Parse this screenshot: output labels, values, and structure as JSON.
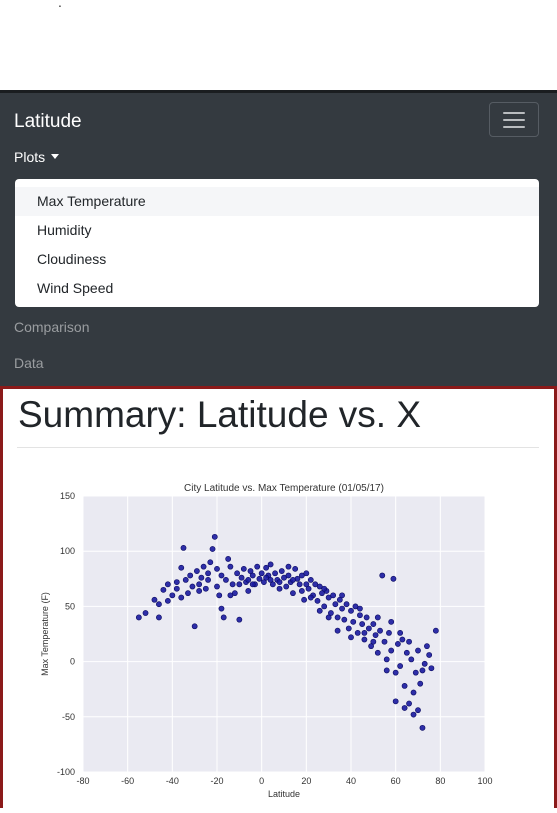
{
  "navbar": {
    "brand": "Latitude",
    "plots_label": "Plots",
    "dropdown_items": [
      "Max Temperature",
      "Humidity",
      "Cloudiness",
      "Wind Speed"
    ],
    "links": [
      "Comparison",
      "Data"
    ]
  },
  "main": {
    "heading": "Summary: Latitude vs. X"
  },
  "colors": {
    "navbar_bg": "#343a40",
    "frame_border": "#8b1a1a",
    "point_fill": "#1a1aa0",
    "plot_bg": "#eaeaf2"
  },
  "chart_data": {
    "type": "scatter",
    "title": "City Latitude vs. Max Temperature (01/05/17)",
    "xlabel": "Latitude",
    "ylabel": "Max Temperature (F)",
    "xlim": [
      -80,
      100
    ],
    "ylim": [
      -100,
      150
    ],
    "xticks": [
      -80,
      -60,
      -40,
      -20,
      0,
      20,
      40,
      60,
      80,
      100
    ],
    "yticks": [
      -100,
      -50,
      0,
      50,
      100,
      150
    ],
    "grid": true,
    "series": [
      {
        "points": [
          [
            -55,
            40
          ],
          [
            -52,
            44
          ],
          [
            -48,
            56
          ],
          [
            -46,
            52
          ],
          [
            -46,
            40
          ],
          [
            -44,
            65
          ],
          [
            -42,
            70
          ],
          [
            -40,
            60
          ],
          [
            -38,
            72
          ],
          [
            -38,
            66
          ],
          [
            -36,
            85
          ],
          [
            -35,
            103
          ],
          [
            -34,
            74
          ],
          [
            -33,
            62
          ],
          [
            -32,
            78
          ],
          [
            -31,
            68
          ],
          [
            -30,
            32
          ],
          [
            -29,
            82
          ],
          [
            -28,
            70
          ],
          [
            -27,
            76
          ],
          [
            -26,
            86
          ],
          [
            -25,
            66
          ],
          [
            -24,
            80
          ],
          [
            -23,
            90
          ],
          [
            -22,
            102
          ],
          [
            -21,
            113
          ],
          [
            -20,
            84
          ],
          [
            -19,
            60
          ],
          [
            -18,
            48
          ],
          [
            -18,
            78
          ],
          [
            -17,
            40
          ],
          [
            -16,
            74
          ],
          [
            -15,
            93
          ],
          [
            -14,
            86
          ],
          [
            -13,
            70
          ],
          [
            -12,
            62
          ],
          [
            -11,
            80
          ],
          [
            -10,
            38
          ],
          [
            -9,
            76
          ],
          [
            -8,
            84
          ],
          [
            -7,
            72
          ],
          [
            -6,
            64
          ],
          [
            -5,
            82
          ],
          [
            -4,
            78
          ],
          [
            -3,
            70
          ],
          [
            -2,
            86
          ],
          [
            -1,
            75
          ],
          [
            0,
            80
          ],
          [
            1,
            72
          ],
          [
            2,
            85
          ],
          [
            3,
            78
          ],
          [
            4,
            88
          ],
          [
            5,
            70
          ],
          [
            6,
            80
          ],
          [
            7,
            74
          ],
          [
            8,
            66
          ],
          [
            9,
            82
          ],
          [
            10,
            76
          ],
          [
            11,
            68
          ],
          [
            12,
            86
          ],
          [
            13,
            72
          ],
          [
            14,
            62
          ],
          [
            15,
            84
          ],
          [
            16,
            75
          ],
          [
            17,
            70
          ],
          [
            18,
            78
          ],
          [
            19,
            56
          ],
          [
            20,
            80
          ],
          [
            21,
            66
          ],
          [
            22,
            74
          ],
          [
            23,
            60
          ],
          [
            24,
            70
          ],
          [
            25,
            55
          ],
          [
            26,
            68
          ],
          [
            27,
            62
          ],
          [
            28,
            50
          ],
          [
            29,
            64
          ],
          [
            30,
            58
          ],
          [
            31,
            44
          ],
          [
            32,
            60
          ],
          [
            33,
            52
          ],
          [
            34,
            40
          ],
          [
            35,
            56
          ],
          [
            36,
            48
          ],
          [
            37,
            38
          ],
          [
            38,
            52
          ],
          [
            39,
            30
          ],
          [
            40,
            46
          ],
          [
            41,
            36
          ],
          [
            42,
            50
          ],
          [
            43,
            26
          ],
          [
            44,
            42
          ],
          [
            45,
            34
          ],
          [
            46,
            20
          ],
          [
            47,
            40
          ],
          [
            48,
            30
          ],
          [
            49,
            14
          ],
          [
            50,
            34
          ],
          [
            51,
            24
          ],
          [
            52,
            8
          ],
          [
            53,
            28
          ],
          [
            54,
            78
          ],
          [
            55,
            18
          ],
          [
            56,
            2
          ],
          [
            57,
            26
          ],
          [
            58,
            10
          ],
          [
            59,
            75
          ],
          [
            60,
            -10
          ],
          [
            61,
            16
          ],
          [
            62,
            -4
          ],
          [
            63,
            20
          ],
          [
            64,
            -22
          ],
          [
            65,
            8
          ],
          [
            66,
            -38
          ],
          [
            67,
            2
          ],
          [
            68,
            -28
          ],
          [
            69,
            -10
          ],
          [
            70,
            -44
          ],
          [
            71,
            -20
          ],
          [
            72,
            -60
          ],
          [
            73,
            -2
          ],
          [
            74,
            14
          ],
          [
            75,
            6
          ],
          [
            76,
            -6
          ],
          [
            78,
            28
          ],
          [
            -42,
            55
          ],
          [
            -36,
            58
          ],
          [
            -28,
            64
          ],
          [
            -24,
            74
          ],
          [
            -20,
            68
          ],
          [
            -14,
            60
          ],
          [
            -6,
            74
          ],
          [
            4,
            74
          ],
          [
            12,
            78
          ],
          [
            20,
            70
          ],
          [
            28,
            66
          ],
          [
            36,
            60
          ],
          [
            44,
            48
          ],
          [
            52,
            40
          ],
          [
            58,
            36
          ],
          [
            62,
            26
          ],
          [
            66,
            18
          ],
          [
            70,
            10
          ],
          [
            72,
            -8
          ],
          [
            68,
            -48
          ],
          [
            64,
            -42
          ],
          [
            60,
            -36
          ],
          [
            56,
            -8
          ],
          [
            50,
            18
          ],
          [
            46,
            26
          ],
          [
            40,
            22
          ],
          [
            34,
            28
          ],
          [
            30,
            40
          ],
          [
            26,
            46
          ],
          [
            22,
            58
          ],
          [
            18,
            64
          ],
          [
            14,
            74
          ],
          [
            8,
            72
          ],
          [
            2,
            76
          ],
          [
            -4,
            70
          ],
          [
            -10,
            70
          ]
        ]
      }
    ]
  }
}
